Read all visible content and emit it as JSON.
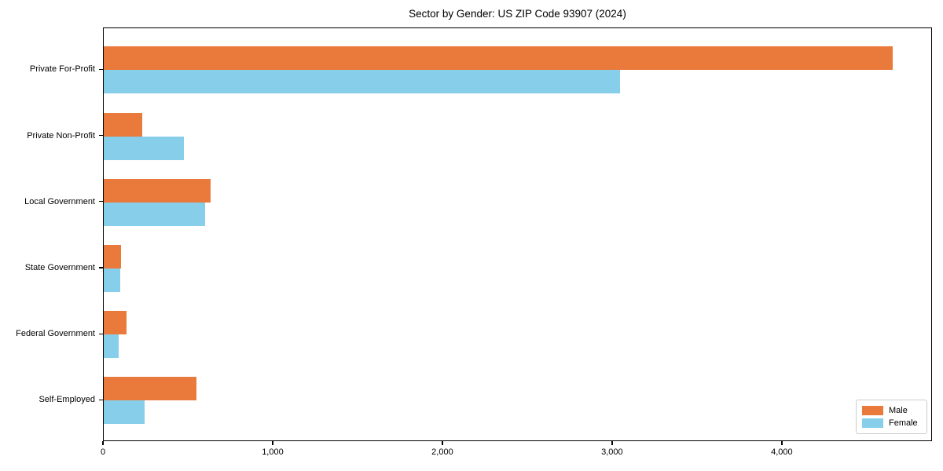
{
  "title": "Sector by Gender: US ZIP Code 93907 (2024)",
  "colors": {
    "male": "#ea7a3c",
    "female": "#86cee9",
    "axis": "#000000",
    "legend_border": "#cccccc",
    "background": "#ffffff"
  },
  "legend": {
    "position": "lower right",
    "entries": [
      {
        "label": "Male",
        "color": "#ea7a3c"
      },
      {
        "label": "Female",
        "color": "#86cee9"
      }
    ]
  },
  "chart_data": {
    "type": "bar",
    "orientation": "horizontal",
    "title": "Sector by Gender: US ZIP Code 93907 (2024)",
    "categories": [
      "Private For-Profit",
      "Private Non-Profit",
      "Local Government",
      "State Government",
      "Federal Government",
      "Self-Employed"
    ],
    "series": [
      {
        "name": "Male",
        "color": "#ea7a3c",
        "values": [
          4650,
          225,
          630,
          100,
          135,
          545
        ]
      },
      {
        "name": "Female",
        "color": "#86cee9",
        "values": [
          3040,
          470,
          595,
          95,
          90,
          240
        ]
      }
    ],
    "xlabel": "",
    "ylabel": "",
    "xlim": [
      0,
      4885
    ],
    "x_ticks": [
      0,
      1000,
      2000,
      3000,
      4000
    ],
    "x_tick_labels": [
      "0",
      "1,000",
      "2,000",
      "3,000",
      "4,000"
    ],
    "grid": false,
    "legend_position": "lower right"
  }
}
